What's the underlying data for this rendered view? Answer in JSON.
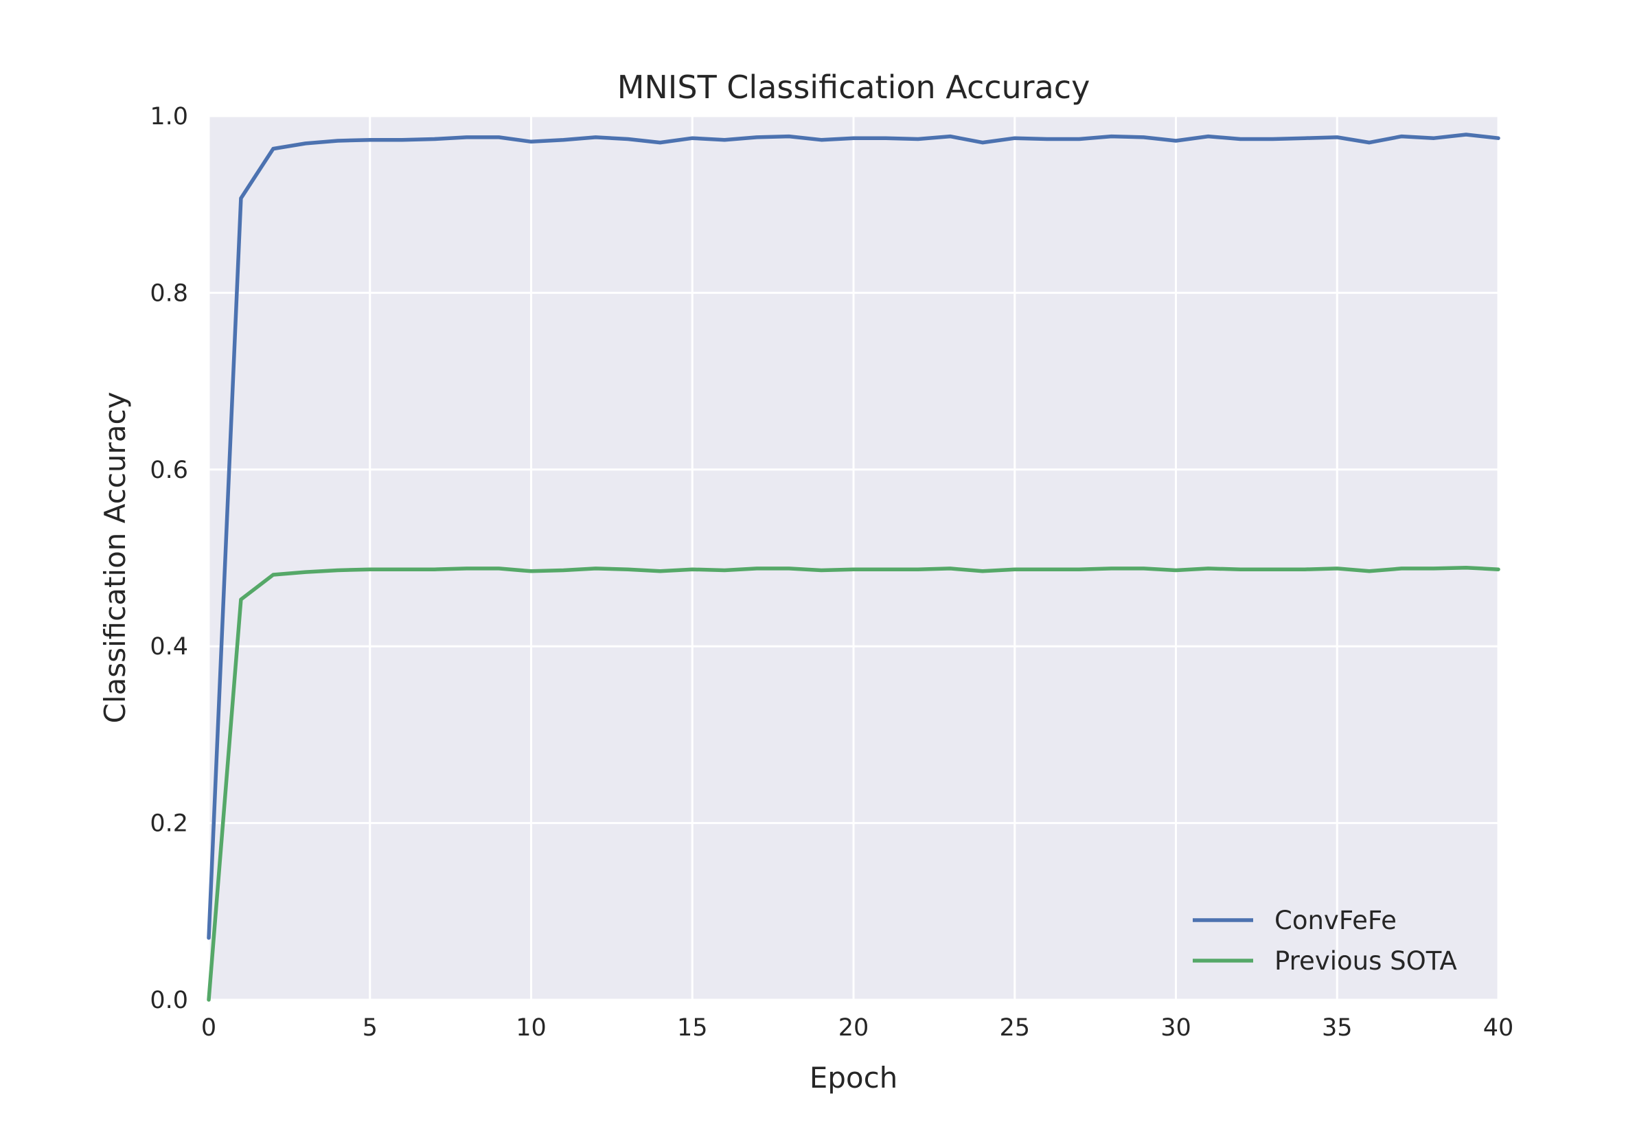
{
  "chart_data": {
    "type": "line",
    "title": "MNIST Classification Accuracy",
    "xlabel": "Epoch",
    "ylabel": "Classification Accuracy",
    "xlim": [
      0,
      40
    ],
    "ylim": [
      0,
      1.0
    ],
    "xticks": [
      0,
      5,
      10,
      15,
      20,
      25,
      30,
      35,
      40
    ],
    "xtick_labels": [
      "0",
      "5",
      "10",
      "15",
      "20",
      "25",
      "30",
      "35",
      "40"
    ],
    "yticks": [
      0,
      0.2,
      0.4,
      0.6,
      0.8,
      1.0
    ],
    "ytick_labels": [
      "0.0",
      "0.2",
      "0.4",
      "0.6",
      "0.8",
      "1.0"
    ],
    "grid": true,
    "legend_position": "bottom-right",
    "background": "#eaeaf2",
    "x": [
      0,
      1,
      2,
      3,
      4,
      5,
      6,
      7,
      8,
      9,
      10,
      11,
      12,
      13,
      14,
      15,
      16,
      17,
      18,
      19,
      20,
      21,
      22,
      23,
      24,
      25,
      26,
      27,
      28,
      29,
      30,
      31,
      32,
      33,
      34,
      35,
      36,
      37,
      38,
      39,
      40
    ],
    "series": [
      {
        "name": "ConvFeFe",
        "color": "#4c72b0",
        "values": [
          0.07,
          0.907,
          0.963,
          0.969,
          0.972,
          0.973,
          0.973,
          0.974,
          0.976,
          0.976,
          0.971,
          0.973,
          0.976,
          0.974,
          0.97,
          0.975,
          0.973,
          0.976,
          0.977,
          0.973,
          0.975,
          0.975,
          0.974,
          0.977,
          0.97,
          0.975,
          0.974,
          0.974,
          0.977,
          0.976,
          0.972,
          0.977,
          0.974,
          0.974,
          0.975,
          0.976,
          0.97,
          0.977,
          0.975,
          0.979,
          0.975
        ]
      },
      {
        "name": "Previous SOTA",
        "color": "#55a868",
        "values": [
          0.0,
          0.453,
          0.481,
          0.484,
          0.486,
          0.487,
          0.487,
          0.487,
          0.488,
          0.488,
          0.485,
          0.486,
          0.488,
          0.487,
          0.485,
          0.487,
          0.486,
          0.488,
          0.488,
          0.486,
          0.487,
          0.487,
          0.487,
          0.488,
          0.485,
          0.487,
          0.487,
          0.487,
          0.488,
          0.488,
          0.486,
          0.488,
          0.487,
          0.487,
          0.487,
          0.488,
          0.485,
          0.488,
          0.488,
          0.489,
          0.487
        ]
      }
    ]
  }
}
